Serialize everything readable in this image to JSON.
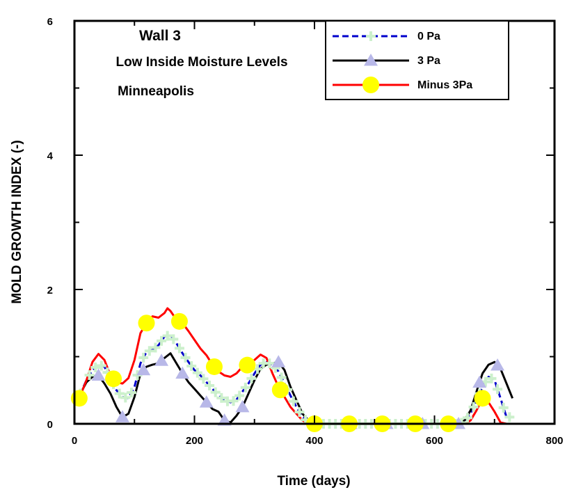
{
  "chart_data": {
    "type": "line",
    "xlabel": "Time (days)",
    "ylabel": "MOLD GROWTH INDEX (-)",
    "xlim": [
      0,
      800
    ],
    "ylim": [
      0,
      6
    ],
    "xticks": [
      0,
      200,
      400,
      600,
      800
    ],
    "yticks": [
      0,
      2,
      4,
      6
    ],
    "grid": false,
    "annotations": [
      "Wall 3",
      "Low Inside Moisture Levels",
      "Minneapolis"
    ],
    "legend_position": "top-right",
    "series": [
      {
        "name": "0 Pa",
        "color": "#0000cc",
        "marker_color": "#ccf0cc",
        "marker": "cross",
        "x": [
          0,
          10,
          20,
          30,
          40,
          50,
          60,
          70,
          80,
          90,
          100,
          110,
          120,
          130,
          140,
          150,
          160,
          170,
          180,
          190,
          200,
          210,
          220,
          230,
          240,
          250,
          260,
          270,
          280,
          290,
          300,
          310,
          320,
          330,
          340,
          350,
          360,
          370,
          380,
          390,
          400,
          640,
          650,
          660,
          670,
          680,
          690,
          700,
          710,
          720
        ],
        "y": [
          0.3,
          0.45,
          0.65,
          0.8,
          0.88,
          0.85,
          0.68,
          0.5,
          0.4,
          0.38,
          0.55,
          0.9,
          1.07,
          1.1,
          1.17,
          1.3,
          1.32,
          1.2,
          1.05,
          0.92,
          0.8,
          0.72,
          0.62,
          0.52,
          0.42,
          0.35,
          0.32,
          0.36,
          0.48,
          0.6,
          0.75,
          0.88,
          0.92,
          0.88,
          0.78,
          0.6,
          0.42,
          0.25,
          0.1,
          0.02,
          0,
          0,
          0.03,
          0.15,
          0.35,
          0.55,
          0.7,
          0.65,
          0.38,
          0.1
        ]
      },
      {
        "name": "3 Pa",
        "color": "#000000",
        "marker_color": "#b8b8e8",
        "marker": "triangle",
        "x": [
          0,
          10,
          20,
          30,
          40,
          50,
          60,
          70,
          80,
          90,
          100,
          110,
          120,
          130,
          140,
          150,
          160,
          170,
          180,
          190,
          200,
          210,
          220,
          230,
          240,
          250,
          260,
          270,
          280,
          290,
          300,
          310,
          320,
          330,
          340,
          350,
          360,
          370,
          380,
          390,
          400,
          640,
          650,
          660,
          670,
          680,
          690,
          700,
          710,
          720,
          730
        ],
        "y": [
          0.3,
          0.45,
          0.62,
          0.7,
          0.72,
          0.6,
          0.45,
          0.25,
          0.1,
          0.15,
          0.4,
          0.75,
          0.85,
          0.88,
          0.9,
          0.98,
          1.05,
          0.9,
          0.75,
          0.62,
          0.52,
          0.42,
          0.32,
          0.22,
          0.18,
          0.05,
          0.02,
          0.12,
          0.25,
          0.45,
          0.65,
          0.82,
          0.88,
          0.9,
          0.92,
          0.8,
          0.55,
          0.35,
          0.15,
          0.05,
          0,
          0,
          0.05,
          0.2,
          0.48,
          0.75,
          0.88,
          0.92,
          0.82,
          0.6,
          0.38
        ]
      },
      {
        "name": "Minus 3Pa",
        "color": "#ff0000",
        "marker_color": "#ffff00",
        "marker": "circle",
        "x": [
          0,
          8,
          20,
          30,
          40,
          50,
          60,
          70,
          80,
          90,
          100,
          110,
          120,
          130,
          140,
          150,
          155,
          160,
          170,
          180,
          190,
          200,
          210,
          220,
          230,
          240,
          250,
          260,
          270,
          280,
          290,
          300,
          310,
          320,
          330,
          340,
          350,
          360,
          370,
          380,
          390,
          400,
          640,
          650,
          660,
          670,
          680,
          690,
          700,
          710,
          720
        ],
        "y": [
          0.3,
          0.38,
          0.65,
          0.92,
          1.04,
          0.95,
          0.72,
          0.62,
          0.6,
          0.68,
          0.95,
          1.35,
          1.5,
          1.6,
          1.58,
          1.65,
          1.72,
          1.68,
          1.55,
          1.5,
          1.38,
          1.25,
          1.12,
          1.02,
          0.88,
          0.78,
          0.72,
          0.7,
          0.75,
          0.85,
          0.88,
          0.95,
          1.03,
          0.98,
          0.75,
          0.55,
          0.4,
          0.25,
          0.15,
          0.05,
          0,
          0,
          0,
          0,
          0.05,
          0.2,
          0.38,
          0.32,
          0.18,
          0.02,
          0
        ]
      }
    ],
    "marker_points": {
      "0 Pa": {
        "x": [
          10,
          25,
          35,
          45,
          55,
          65,
          75,
          85,
          95,
          105,
          115,
          125,
          135,
          145,
          155,
          165,
          175,
          185,
          195,
          205,
          215,
          225,
          235,
          245,
          255,
          265,
          275,
          285,
          295,
          305,
          315,
          325,
          335,
          345,
          355,
          365,
          375,
          385,
          395,
          405,
          415,
          425,
          435,
          445,
          455,
          465,
          475,
          485,
          495,
          505,
          515,
          525,
          535,
          545,
          555,
          565,
          575,
          585,
          595,
          605,
          615,
          625,
          635,
          645,
          655,
          665,
          675,
          685,
          695,
          705,
          715,
          725
        ]
      },
      "3 Pa": {
        "x": [
          40,
          80,
          115,
          145,
          180,
          220,
          250,
          280,
          340,
          400,
          460,
          520,
          580,
          640,
          675,
          705
        ]
      },
      "Minus 3Pa": {
        "x": [
          8,
          65,
          120,
          175,
          233,
          288,
          343,
          400,
          458,
          513,
          568,
          623,
          680
        ]
      }
    }
  }
}
